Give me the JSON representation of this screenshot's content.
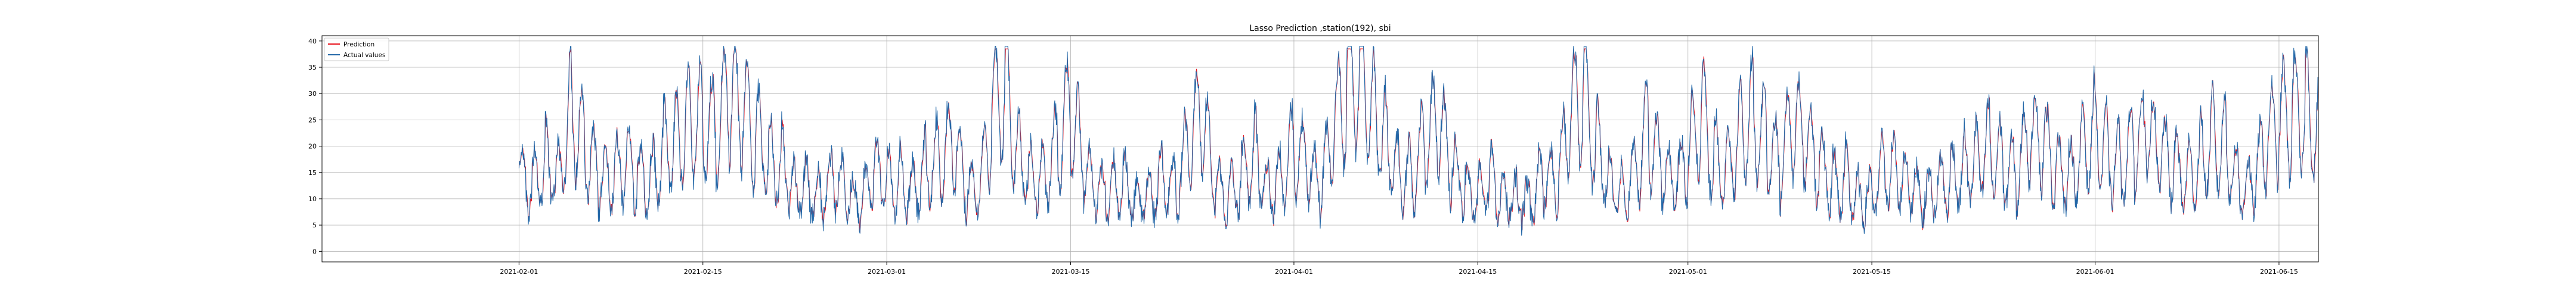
{
  "chart_data": {
    "type": "line",
    "title": "Lasso Prediction ,station(192), sbi",
    "xlabel": "",
    "ylabel": "",
    "x_range": [
      "2021-01-17",
      "2021-06-18"
    ],
    "ylim": [
      -2,
      41
    ],
    "x_ticks": [
      "2021-02-01",
      "2021-02-15",
      "2021-03-01",
      "2021-03-15",
      "2021-04-01",
      "2021-04-15",
      "2021-05-01",
      "2021-05-15",
      "2021-06-01",
      "2021-06-15"
    ],
    "y_ticks": [
      0,
      5,
      10,
      15,
      20,
      25,
      30,
      35,
      40
    ],
    "grid": true,
    "legend_position": "top-left",
    "sampling": "hourly, 2021-02-01 to 2021-06-10",
    "keyframes_daily": [
      15,
      12,
      17,
      15,
      28,
      20,
      14,
      13,
      16,
      14,
      13,
      20,
      22,
      26,
      24,
      22,
      30,
      25,
      22,
      18,
      17,
      12,
      13,
      10,
      14,
      11,
      8,
      16,
      13,
      14,
      12,
      16,
      18,
      20,
      12,
      11,
      26,
      32,
      19,
      15,
      14,
      20,
      27,
      16,
      10,
      12,
      13,
      10,
      11,
      14,
      12,
      20,
      26,
      12,
      10,
      14,
      19,
      12,
      14,
      20,
      16,
      12,
      22,
      31,
      36,
      27,
      22,
      15,
      14,
      21,
      24,
      16,
      12,
      10,
      14,
      11,
      10,
      9,
      15,
      12,
      25,
      30,
      20,
      14,
      12,
      16,
      23,
      15,
      12,
      18,
      26,
      18,
      16,
      24,
      26,
      20,
      16,
      24,
      20,
      17,
      13,
      14,
      10,
      11,
      16,
      14,
      12,
      10,
      12,
      14,
      16,
      18,
      20,
      16,
      14,
      22,
      20,
      16,
      14,
      20,
      24,
      18,
      16,
      20,
      22,
      18,
      16,
      14,
      18,
      22,
      20,
      12,
      12,
      20,
      24,
      26,
      27,
      24
    ],
    "series": [
      {
        "name": "Prediction",
        "color": "#e8141e"
      },
      {
        "name": "Actual values",
        "color": "#2468a8"
      }
    ]
  }
}
